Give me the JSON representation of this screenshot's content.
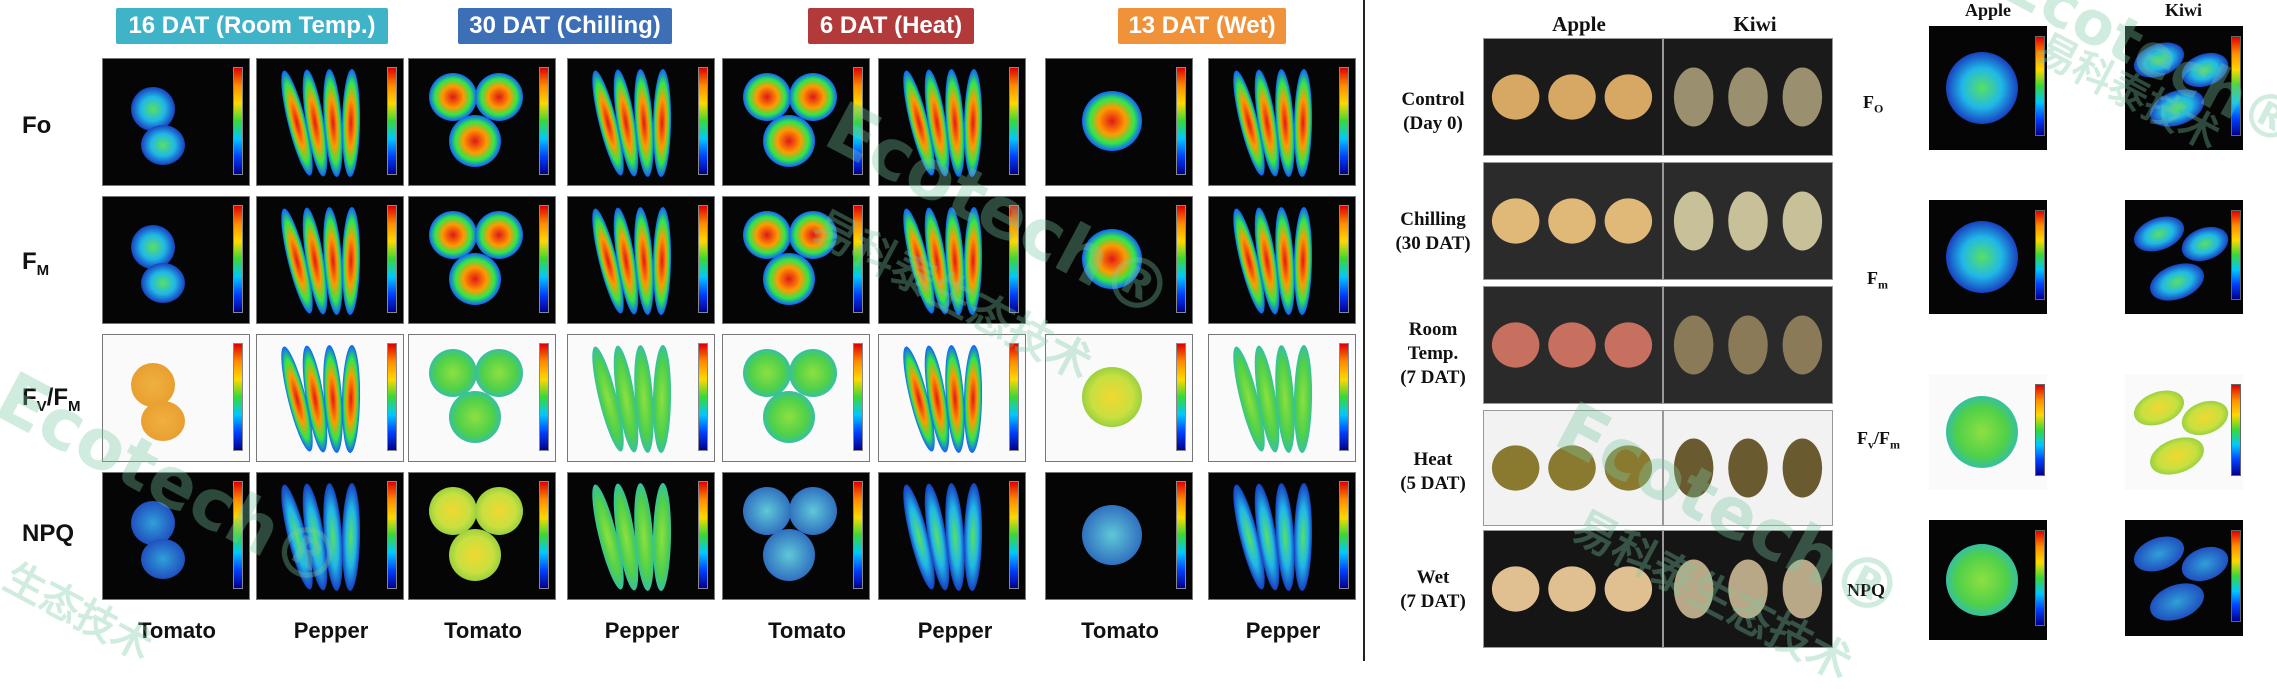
{
  "left_panel": {
    "conditions": [
      {
        "label": "16 DAT (Room Temp.)",
        "color": "#3fb3c8"
      },
      {
        "label": "30 DAT (Chilling)",
        "color": "#3c6fb5"
      },
      {
        "label": "6 DAT (Heat)",
        "color": "#b23a3a"
      },
      {
        "label": "13 DAT (Wet)",
        "color": "#f0923a"
      }
    ],
    "row_labels": {
      "fo": "Fo",
      "fm_main": "F",
      "fm_sub": "M",
      "fvfm_a": "F",
      "fvfm_a_sub": "V",
      "fvfm_sep": "/F",
      "fvfm_b_sub": "M",
      "npq": "NPQ"
    },
    "crops": [
      "Tomato",
      "Pepper",
      "Tomato",
      "Pepper",
      "Tomato",
      "Pepper",
      "Tomato",
      "Pepper"
    ]
  },
  "middle_panel": {
    "columns": [
      "Apple",
      "Kiwi"
    ],
    "rows": [
      [
        "Control",
        "(Day 0)"
      ],
      [
        "Chilling",
        "(30 DAT)"
      ],
      [
        "Room",
        "Temp.",
        "(7 DAT)"
      ],
      [
        "Heat",
        "(5 DAT)"
      ],
      [
        "Wet",
        "(7 DAT)"
      ]
    ]
  },
  "right_panel": {
    "columns": [
      "Apple",
      "Kiwi"
    ],
    "rows": {
      "fo_main": "F",
      "fo_sub": "O",
      "fm_main": "F",
      "fm_sub": "m",
      "fvfm_a": "F",
      "fvfm_a_sub": "v",
      "fvfm_sep": "/F",
      "fvfm_b_sub": "m",
      "npq": "NPQ"
    }
  },
  "watermarks": [
    "易科泰",
    "生态技术",
    "Ecotech®"
  ]
}
